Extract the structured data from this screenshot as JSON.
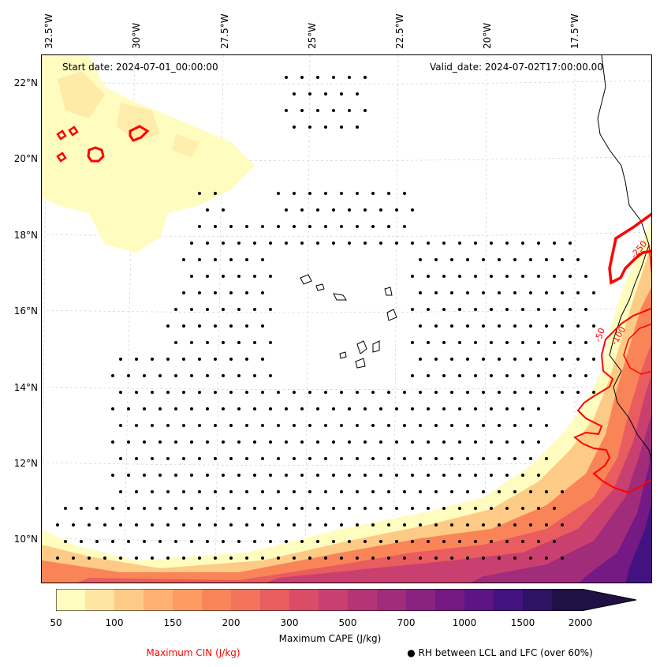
{
  "header": {
    "start_date": "Start date: 2024-07-01_00:00:00",
    "valid_date": "Valid_date: 2024-07-02T17:00:00.00"
  },
  "map": {
    "lon_labels": [
      "32.5°W",
      "30°W",
      "27.5°W",
      "25°W",
      "22.5°W",
      "20°W",
      "17.5°W"
    ],
    "lat_labels": [
      "22°N",
      "20°N",
      "18°N",
      "16°N",
      "14°N",
      "12°N",
      "10°N"
    ],
    "cin_contour_labels": [
      "-250",
      "-50",
      "-100"
    ]
  },
  "legend": {
    "colorbar_label": "Maximum CAPE (J/kg)",
    "cin_label": "Maximum CIN (J/kg)",
    "rh_label": "● RH between LCL and LFC (over 60%)",
    "colorbar_ticks": [
      "50",
      "100",
      "150",
      "200",
      "300",
      "500",
      "700",
      "1000",
      "1500",
      "2000"
    ],
    "colorbar_colors": [
      "#fffcbf",
      "#fee6a2",
      "#fdcb86",
      "#fdb071",
      "#fc9b62",
      "#f98458",
      "#f3725a",
      "#e95c5f",
      "#db4c67",
      "#c94070",
      "#b33575",
      "#a02c7a",
      "#8a2280",
      "#751a84",
      "#5d1586",
      "#431281",
      "#2c1463",
      "#201044"
    ]
  }
}
